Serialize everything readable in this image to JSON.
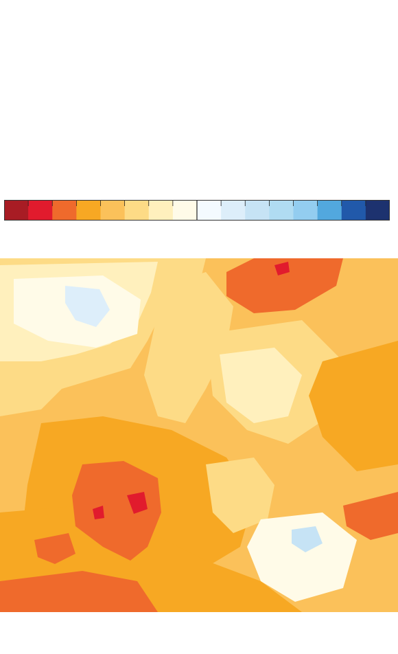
{
  "legend": {
    "colors": [
      "#a81c24",
      "#e11b2d",
      "#ef6a2c",
      "#f7a823",
      "#fbc15a",
      "#fddb86",
      "#fff0bd",
      "#fffbe8",
      "#f4faff",
      "#ddeefa",
      "#c6e3f5",
      "#b0dcf2",
      "#93cdf0",
      "#52a8de",
      "#2159aa",
      "#1d326f"
    ]
  },
  "map": {
    "background": "#fbc15a",
    "colors": {
      "deep_red": "#e11b2d",
      "red_orange": "#ef6a2c",
      "orange": "#f7a823",
      "light_orange": "#fbc15a",
      "pale_yellow": "#fddb86",
      "cream": "#fff0bd",
      "near_white": "#fffbe8",
      "pale_blue": "#ddeefa",
      "light_blue": "#c6e3f5"
    }
  }
}
